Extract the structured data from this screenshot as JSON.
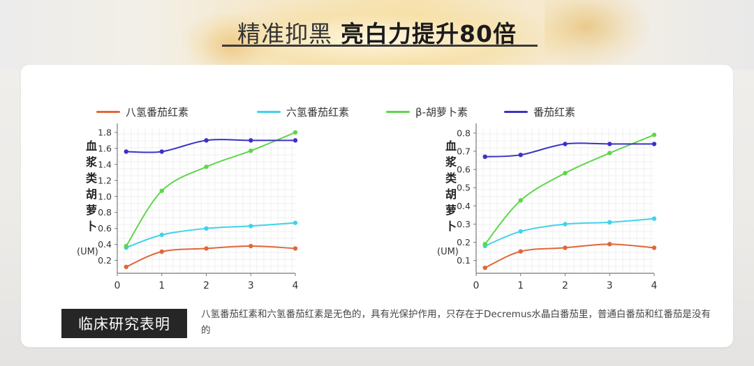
{
  "headline": {
    "part1": "精准抑黑",
    "part2": "亮白力提升80倍"
  },
  "legend": [
    {
      "label": "八氢番茄红素",
      "color": "#e0673a"
    },
    {
      "label": "六氢番茄红素",
      "color": "#3fd3ec"
    },
    {
      "label": "β-胡萝卜素",
      "color": "#5fd64a"
    },
    {
      "label": "番茄红素",
      "color": "#3b32c7"
    }
  ],
  "y_axis_label": "血浆类胡萝卜",
  "y_axis_unit": "(UM)",
  "chart_data": [
    {
      "type": "line",
      "x": [
        0.2,
        1,
        2,
        3,
        4
      ],
      "xlim": [
        0,
        4
      ],
      "xticks": [
        "0",
        "1",
        "2",
        "3",
        "4"
      ],
      "ylim": [
        0.04,
        1.86
      ],
      "yticks": [
        "0.2",
        "0.4",
        "0.6",
        "0.8",
        "1.0",
        "1.2",
        "1.4",
        "1.6",
        "1.8"
      ],
      "ylabel": "血浆类胡萝卜 (UM)",
      "grid": true,
      "legend": "top",
      "series": [
        {
          "name": "八氢番茄红素",
          "values": [
            0.12,
            0.31,
            0.35,
            0.38,
            0.35
          ]
        },
        {
          "name": "六氢番茄红素",
          "values": [
            0.36,
            0.52,
            0.6,
            0.63,
            0.67
          ]
        },
        {
          "name": "β-胡萝卜素",
          "values": [
            0.38,
            1.07,
            1.37,
            1.57,
            1.8
          ]
        },
        {
          "name": "番茄红素",
          "values": [
            1.56,
            1.56,
            1.7,
            1.7,
            1.7
          ]
        }
      ]
    },
    {
      "type": "line",
      "x": [
        0.2,
        1,
        2,
        3,
        4
      ],
      "xlim": [
        0,
        4
      ],
      "xticks": [
        "0",
        "1",
        "2",
        "3",
        "4"
      ],
      "ylim": [
        0.03,
        0.83
      ],
      "yticks": [
        "0.1",
        "0.2",
        "0.3",
        "0.4",
        "0.5",
        "0.6",
        "0.7",
        "0.8"
      ],
      "ylabel": "血浆类胡萝卜 (UM)",
      "grid": true,
      "legend": "top",
      "series": [
        {
          "name": "八氢番茄红素",
          "values": [
            0.06,
            0.15,
            0.17,
            0.19,
            0.17
          ]
        },
        {
          "name": "六氢番茄红素",
          "values": [
            0.18,
            0.26,
            0.3,
            0.31,
            0.33
          ]
        },
        {
          "name": "β-胡萝卜素",
          "values": [
            0.19,
            0.43,
            0.58,
            0.69,
            0.79
          ]
        },
        {
          "name": "番茄红素",
          "values": [
            0.67,
            0.68,
            0.74,
            0.74,
            0.74
          ]
        }
      ]
    }
  ],
  "footer": {
    "badge": "临床研究表明",
    "text": "八氢番茄红素和六氢番茄红素是无色的，具有光保护作用，只存在于Decremus水晶白番茄里，普通白番茄和红番茄是没有的"
  }
}
